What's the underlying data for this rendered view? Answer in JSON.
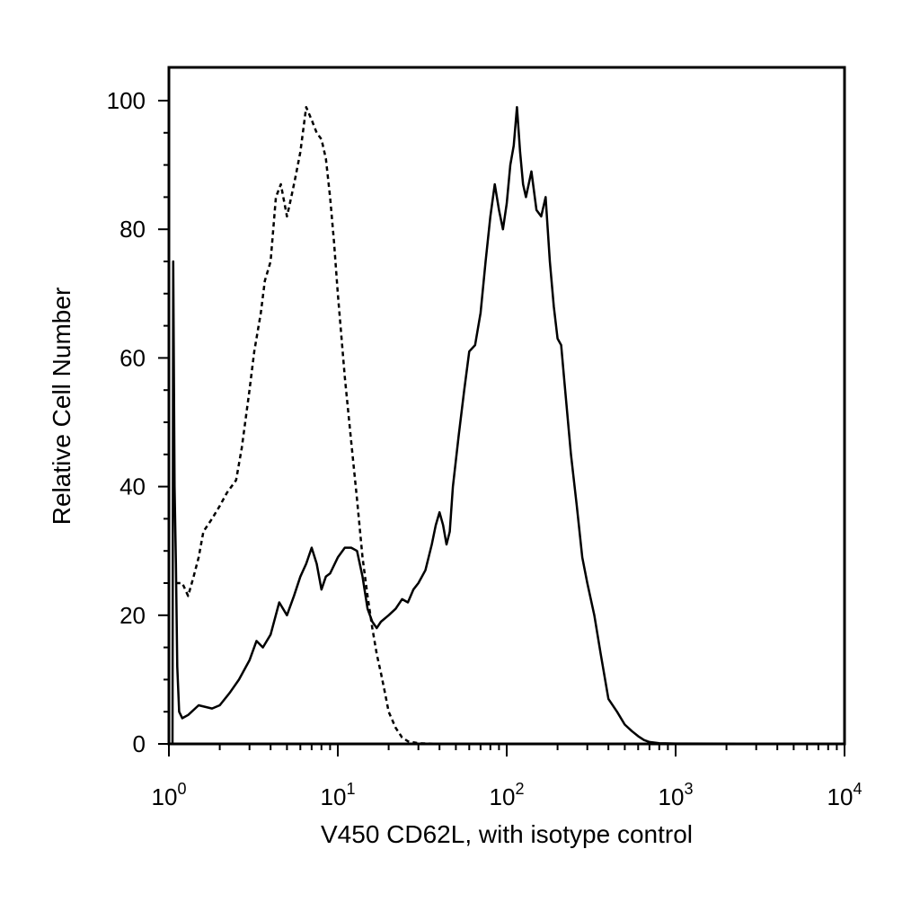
{
  "chart_data": {
    "type": "line",
    "title": "",
    "xlabel": "V450 CD62L, with isotype control",
    "ylabel": "Relative Cell Number",
    "xscale": "log",
    "xlim": [
      1,
      10000
    ],
    "ylim": [
      0,
      105
    ],
    "x_ticks": [
      {
        "value": 1,
        "base": "10",
        "exp": "0"
      },
      {
        "value": 10,
        "base": "10",
        "exp": "1"
      },
      {
        "value": 100,
        "base": "10",
        "exp": "2"
      },
      {
        "value": 1000,
        "base": "10",
        "exp": "3"
      },
      {
        "value": 10000,
        "base": "10",
        "exp": "4"
      }
    ],
    "y_ticks": [
      0,
      20,
      40,
      60,
      80,
      100
    ],
    "grid": false,
    "legend": "none",
    "series": [
      {
        "style": "solid",
        "color": "#000000",
        "points": [
          [
            1.05,
            0
          ],
          [
            1.06,
            75
          ],
          [
            1.08,
            40
          ],
          [
            1.1,
            28
          ],
          [
            1.12,
            12
          ],
          [
            1.15,
            5
          ],
          [
            1.2,
            4
          ],
          [
            1.3,
            4.5
          ],
          [
            1.5,
            6
          ],
          [
            1.8,
            5.5
          ],
          [
            2.0,
            6
          ],
          [
            2.3,
            8
          ],
          [
            2.6,
            10
          ],
          [
            3.0,
            13
          ],
          [
            3.3,
            16
          ],
          [
            3.6,
            15
          ],
          [
            4.0,
            17
          ],
          [
            4.5,
            22
          ],
          [
            5.0,
            20
          ],
          [
            5.5,
            23
          ],
          [
            6.0,
            26
          ],
          [
            6.5,
            28
          ],
          [
            7.0,
            30.5
          ],
          [
            7.5,
            28
          ],
          [
            8.0,
            24
          ],
          [
            8.5,
            26
          ],
          [
            9.0,
            26.5
          ],
          [
            10,
            29
          ],
          [
            11,
            30.5
          ],
          [
            12,
            30.5
          ],
          [
            13,
            30
          ],
          [
            14,
            26
          ],
          [
            15,
            21
          ],
          [
            16,
            19
          ],
          [
            17,
            18
          ],
          [
            18,
            19
          ],
          [
            20,
            20
          ],
          [
            22,
            21
          ],
          [
            24,
            22.5
          ],
          [
            26,
            22
          ],
          [
            28,
            24
          ],
          [
            30,
            25
          ],
          [
            33,
            27
          ],
          [
            36,
            31
          ],
          [
            38,
            34
          ],
          [
            40,
            36
          ],
          [
            42,
            34
          ],
          [
            44,
            31
          ],
          [
            46,
            33
          ],
          [
            48,
            40
          ],
          [
            52,
            48
          ],
          [
            56,
            55
          ],
          [
            60,
            61
          ],
          [
            65,
            62
          ],
          [
            70,
            67
          ],
          [
            75,
            75
          ],
          [
            80,
            82
          ],
          [
            85,
            87
          ],
          [
            90,
            83
          ],
          [
            95,
            80
          ],
          [
            100,
            84
          ],
          [
            105,
            90
          ],
          [
            110,
            93
          ],
          [
            115,
            99
          ],
          [
            120,
            92
          ],
          [
            125,
            87
          ],
          [
            130,
            85
          ],
          [
            140,
            89
          ],
          [
            150,
            83
          ],
          [
            160,
            82
          ],
          [
            170,
            85
          ],
          [
            180,
            75
          ],
          [
            190,
            68
          ],
          [
            200,
            63
          ],
          [
            210,
            62
          ],
          [
            220,
            56
          ],
          [
            240,
            45
          ],
          [
            260,
            37
          ],
          [
            280,
            29
          ],
          [
            300,
            25
          ],
          [
            330,
            20
          ],
          [
            360,
            14
          ],
          [
            400,
            7
          ],
          [
            450,
            5
          ],
          [
            500,
            3
          ],
          [
            550,
            2
          ],
          [
            600,
            1.2
          ],
          [
            650,
            0.6
          ],
          [
            700,
            0.3
          ],
          [
            800,
            0.1
          ],
          [
            1000,
            0.05
          ],
          [
            10000,
            0
          ]
        ]
      },
      {
        "style": "dashed",
        "color": "#000000",
        "points": [
          [
            1.1,
            25
          ],
          [
            1.2,
            25
          ],
          [
            1.3,
            23
          ],
          [
            1.4,
            26
          ],
          [
            1.5,
            29
          ],
          [
            1.6,
            33
          ],
          [
            1.8,
            35
          ],
          [
            2.0,
            37
          ],
          [
            2.2,
            39
          ],
          [
            2.5,
            41
          ],
          [
            2.7,
            46
          ],
          [
            3.0,
            55
          ],
          [
            3.2,
            61
          ],
          [
            3.5,
            67
          ],
          [
            3.7,
            72
          ],
          [
            4.0,
            75
          ],
          [
            4.3,
            85
          ],
          [
            4.6,
            87
          ],
          [
            5.0,
            82
          ],
          [
            5.3,
            85
          ],
          [
            5.6,
            88
          ],
          [
            6.0,
            92
          ],
          [
            6.5,
            99
          ],
          [
            7.0,
            97
          ],
          [
            7.5,
            95
          ],
          [
            8.0,
            94
          ],
          [
            8.5,
            91
          ],
          [
            9.0,
            85
          ],
          [
            9.5,
            78
          ],
          [
            10,
            70
          ],
          [
            11,
            57
          ],
          [
            12,
            47
          ],
          [
            13,
            38
          ],
          [
            14,
            29
          ],
          [
            15,
            23
          ],
          [
            16,
            18
          ],
          [
            17,
            14
          ],
          [
            18,
            11
          ],
          [
            19,
            8
          ],
          [
            20,
            5
          ],
          [
            22,
            2.5
          ],
          [
            24,
            1
          ],
          [
            26,
            0.4
          ],
          [
            30,
            0.1
          ],
          [
            40,
            0
          ],
          [
            10000,
            0
          ]
        ]
      }
    ]
  }
}
